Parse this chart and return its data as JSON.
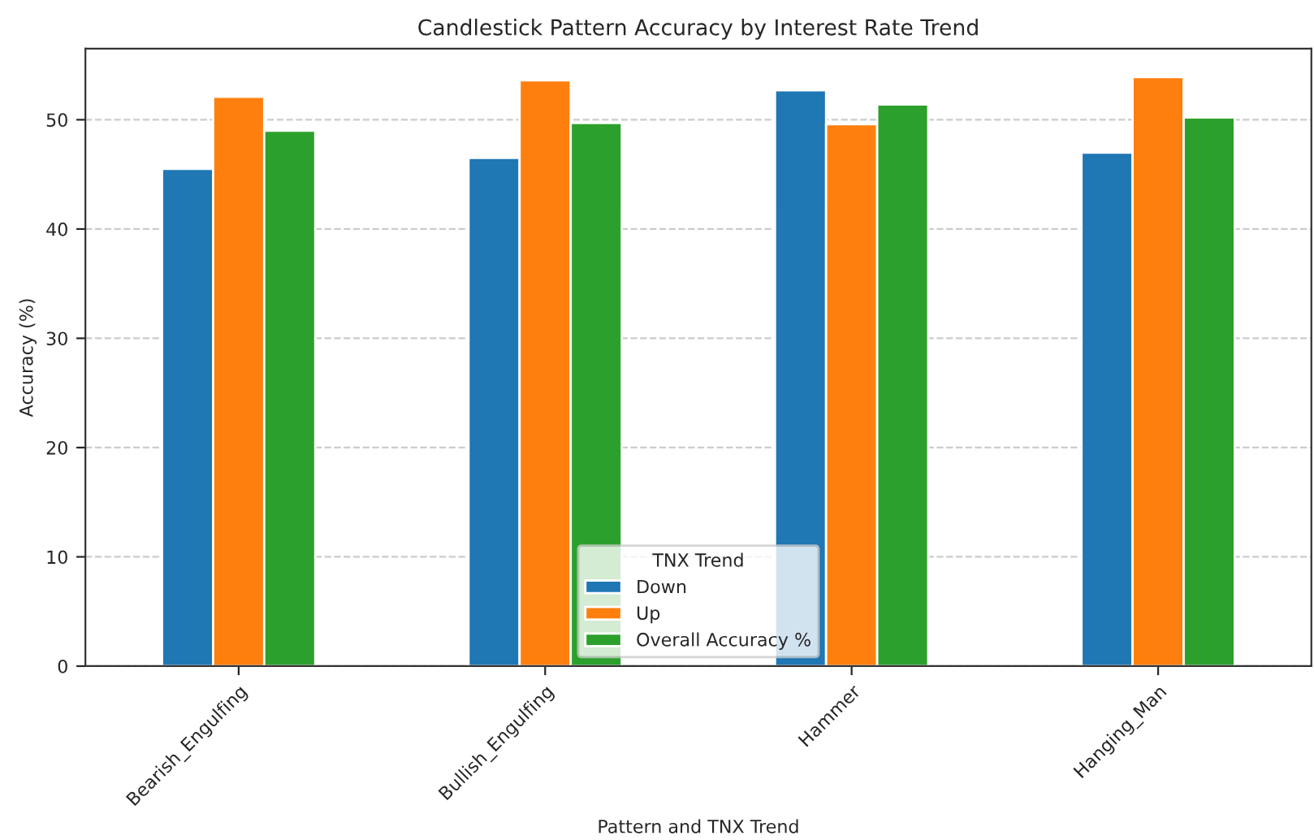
{
  "chart_data": {
    "type": "bar",
    "title": "Candlestick Pattern Accuracy by Interest Rate Trend",
    "xlabel": "Pattern and TNX Trend",
    "ylabel": "Accuracy (%)",
    "legend_title": "TNX Trend",
    "categories": [
      "Bearish_Engulfing",
      "Bullish_Engulfing",
      "Hammer",
      "Hanging_Man"
    ],
    "series": [
      {
        "name": "Down",
        "color": "#1f77b4",
        "values": [
          45.5,
          46.5,
          52.7,
          47.0
        ]
      },
      {
        "name": "Up",
        "color": "#ff7f0e",
        "values": [
          52.1,
          53.6,
          49.6,
          53.9
        ]
      },
      {
        "name": "Overall Accuracy %",
        "color": "#2ca02c",
        "values": [
          49.0,
          49.7,
          51.4,
          50.2
        ]
      }
    ],
    "ylim": [
      0,
      56.5
    ],
    "yticks": [
      0,
      10,
      20,
      30,
      40,
      50
    ],
    "grid": "y",
    "legend": "bottom"
  }
}
